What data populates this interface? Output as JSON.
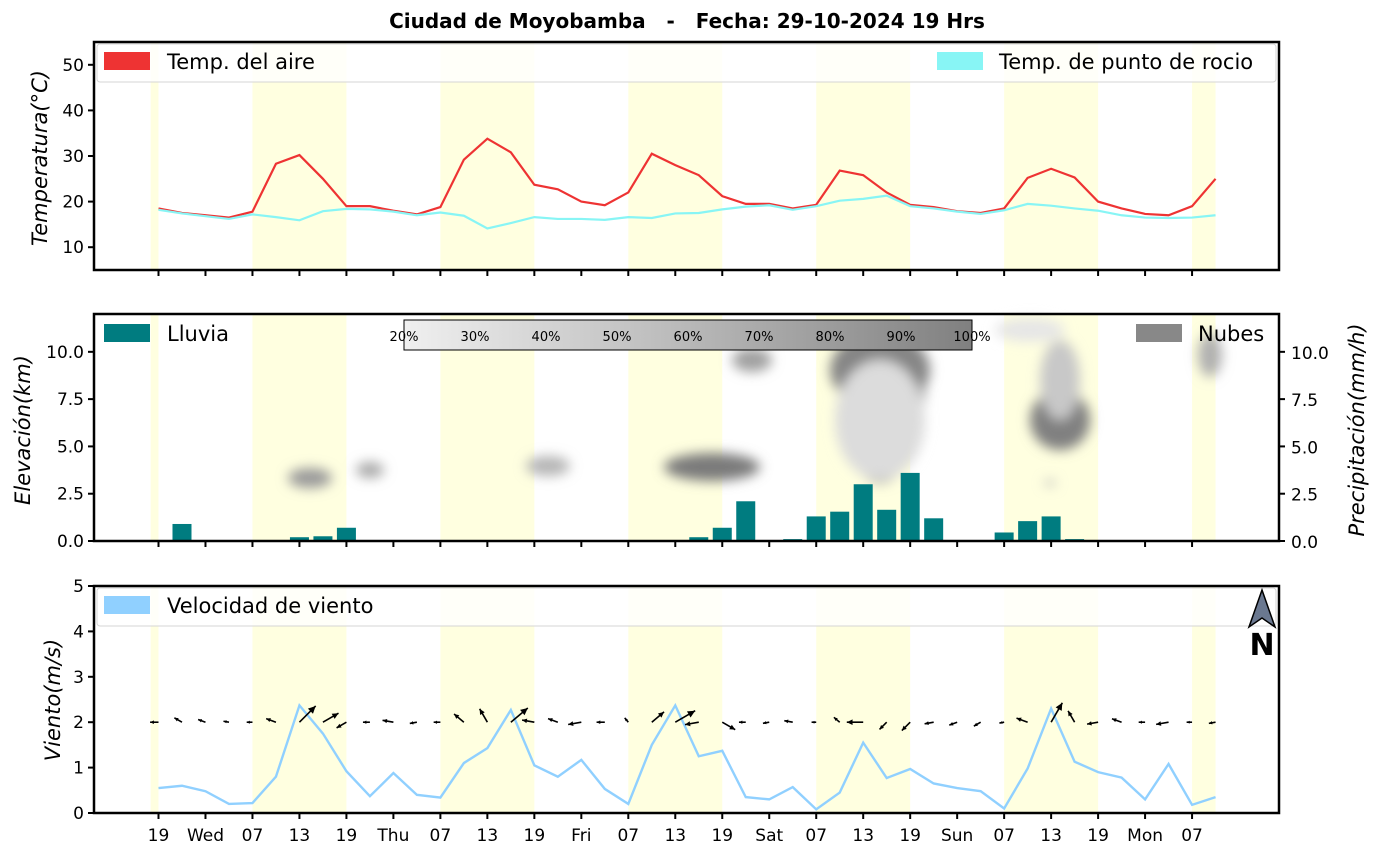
{
  "chart_data": {
    "title": "Ciudad de Moyobamba   -   Fecha: 29-10-2024 19 Hrs",
    "x_tick_labels": [
      "19",
      "Wed",
      "07",
      "13",
      "19",
      "Thu",
      "07",
      "13",
      "19",
      "Fri",
      "07",
      "13",
      "19",
      "Sat",
      "07",
      "13",
      "19",
      "Sun",
      "07",
      "13",
      "19",
      "Mon",
      "07"
    ],
    "x_tick_hours": [
      0,
      6,
      12,
      18,
      24,
      30,
      36,
      42,
      48,
      54,
      60,
      66,
      72,
      78,
      84,
      90,
      96,
      102,
      108,
      114,
      120,
      126,
      132
    ],
    "day_periods": [
      [
        -1,
        0
      ],
      [
        12,
        24
      ],
      [
        36,
        48
      ],
      [
        60,
        72
      ],
      [
        84,
        96
      ],
      [
        108,
        120
      ],
      [
        132,
        135
      ]
    ],
    "colors": {
      "temp": "#ee3333",
      "dew": "#88f5f5",
      "rain": "#007c80",
      "clouds": "#888888",
      "wind": "#90d0ff",
      "daylight": "#ffffe0"
    },
    "panels": [
      {
        "type": "line",
        "ylabel": "Temperatura(°C)",
        "ylim": [
          5,
          55
        ],
        "yticks": [
          10,
          20,
          30,
          40,
          50
        ],
        "series": [
          {
            "name": "Temp. del aire",
            "values": [
              18.5,
              17.5,
              17.0,
              16.5,
              17.8,
              28.3,
              30.2,
              25.0,
              19.0,
              19.0,
              18.0,
              17.2,
              18.8,
              29.2,
              33.8,
              30.8,
              23.7,
              22.7,
              20.0,
              19.2,
              22.0,
              30.5,
              28.0,
              25.8,
              21.2,
              19.5,
              19.5,
              18.5,
              19.3,
              26.8,
              25.8,
              22.0,
              19.3,
              18.8,
              17.9,
              17.5,
              18.5,
              25.2,
              27.2,
              25.3,
              20.0,
              18.5,
              17.3,
              17.0,
              19.0,
              25.0
            ]
          },
          {
            "name": "Temp. de punto de rocio",
            "values": [
              18.2,
              17.4,
              16.8,
              16.2,
              17.2,
              16.6,
              15.9,
              17.9,
              18.4,
              18.3,
              17.8,
              17.0,
              17.6,
              16.9,
              14.1,
              15.3,
              16.6,
              16.2,
              16.2,
              16.0,
              16.6,
              16.4,
              17.4,
              17.5,
              18.3,
              18.9,
              19.2,
              18.2,
              19.0,
              20.2,
              20.6,
              21.3,
              19.0,
              18.5,
              17.8,
              17.3,
              18.1,
              19.5,
              19.1,
              18.5,
              18.0,
              17.0,
              16.5,
              16.4,
              16.5,
              17.0
            ]
          }
        ],
        "legend": [
          "Temp. del aire",
          "Temp. de punto de rocio"
        ]
      },
      {
        "type": "bar+contour",
        "ylabel_left": "Elevación(km)",
        "ylabel_right": "Precipitación(mm/h)",
        "ylim": [
          0,
          12
        ],
        "yticks": [
          0.0,
          2.5,
          5.0,
          7.5,
          10.0
        ],
        "series": [
          {
            "name": "Lluvia",
            "values": [
              0,
              0.9,
              0,
              0,
              0,
              0,
              0.2,
              0.25,
              0.7,
              0,
              0,
              0,
              0,
              0,
              0,
              0,
              0,
              0,
              0,
              0,
              0,
              0,
              0,
              0.2,
              0.7,
              2.1,
              0.05,
              0.1,
              1.3,
              1.55,
              3.0,
              1.65,
              3.6,
              1.2,
              0,
              0.05,
              0.45,
              1.05,
              1.3,
              0.1,
              0.05,
              0,
              0,
              0,
              0,
              0
            ]
          }
        ],
        "clouds_colorbar": [
          "20%",
          "30%",
          "40%",
          "50%",
          "60%",
          "70%",
          "80%",
          "90%",
          "100%"
        ],
        "legend": [
          "Lluvia",
          "Nubes"
        ]
      },
      {
        "type": "line",
        "ylabel": "Viento(m/s)",
        "ylim": [
          0,
          5
        ],
        "yticks": [
          0,
          1,
          2,
          3,
          4,
          5
        ],
        "series": [
          {
            "name": "Velocidad de viento",
            "values": [
              0.55,
              0.6,
              0.48,
              0.2,
              0.22,
              0.8,
              2.37,
              1.75,
              0.92,
              0.37,
              0.88,
              0.4,
              0.34,
              1.1,
              1.43,
              2.27,
              1.05,
              0.8,
              1.17,
              0.53,
              0.2,
              1.5,
              2.37,
              1.25,
              1.37,
              0.35,
              0.3,
              0.57,
              0.08,
              0.45,
              1.55,
              0.77,
              0.97,
              0.65,
              0.55,
              0.48,
              0.1,
              0.98,
              2.3,
              1.13,
              0.9,
              0.78,
              0.3,
              1.08,
              0.18,
              0.35
            ]
          }
        ],
        "wind_direction_deg": [
          90,
          120,
          110,
          100,
          90,
          110,
          225,
          240,
          60,
          90,
          100,
          80,
          90,
          130,
          150,
          230,
          100,
          110,
          80,
          90,
          140,
          230,
          240,
          80,
          300,
          90,
          80,
          100,
          90,
          130,
          90,
          45,
          45,
          80,
          70,
          60,
          80,
          110,
          210,
          150,
          80,
          110,
          90,
          80,
          90,
          80
        ],
        "legend": [
          "Velocidad de viento"
        ],
        "north_label": "N"
      }
    ]
  }
}
